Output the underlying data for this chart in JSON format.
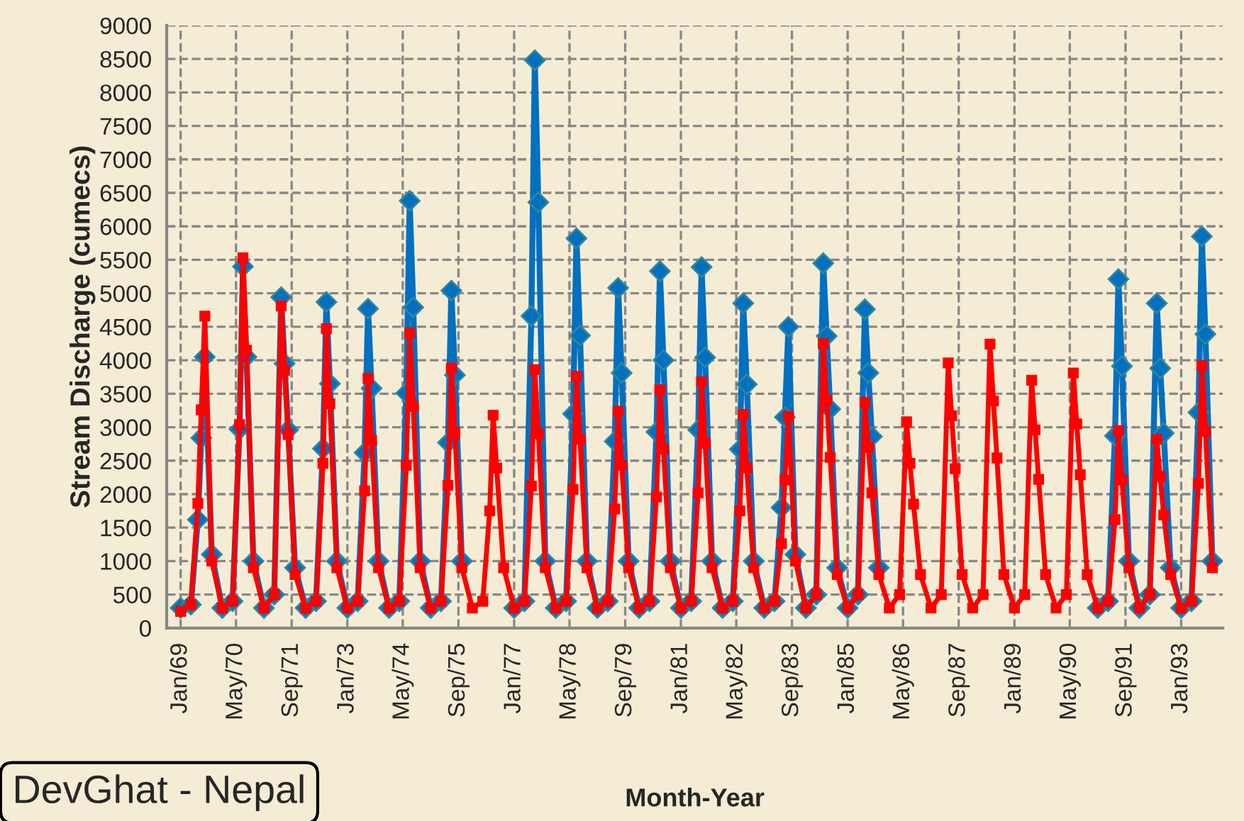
{
  "chart_data": {
    "type": "line",
    "xlabel": "Month-Year",
    "ylabel": "Stream Discharge (cumecs)",
    "annotations": [
      "DevGhat - Nepal"
    ],
    "x": [
      "1969-01",
      "1969-04",
      "1969-06",
      "1969-07",
      "1969-08",
      "1969-10",
      "1970-01",
      "1970-04",
      "1970-06",
      "1970-07",
      "1970-08",
      "1970-10",
      "1971-01",
      "1971-04",
      "1971-06",
      "1971-07",
      "1971-08",
      "1971-10",
      "1972-01",
      "1972-04",
      "1972-06",
      "1972-07",
      "1972-08",
      "1972-10",
      "1973-01",
      "1973-04",
      "1973-06",
      "1973-07",
      "1973-08",
      "1973-10",
      "1974-01",
      "1974-04",
      "1974-06",
      "1974-07",
      "1974-08",
      "1974-10",
      "1975-01",
      "1975-04",
      "1975-06",
      "1975-07",
      "1975-08",
      "1975-10",
      "1976-01",
      "1976-04",
      "1976-06",
      "1976-07",
      "1976-08",
      "1976-10",
      "1977-01",
      "1977-04",
      "1977-06",
      "1977-07",
      "1977-08",
      "1977-10",
      "1978-01",
      "1978-04",
      "1978-06",
      "1978-07",
      "1978-08",
      "1978-10",
      "1979-01",
      "1979-04",
      "1979-06",
      "1979-07",
      "1979-08",
      "1979-10",
      "1980-01",
      "1980-04",
      "1980-06",
      "1980-07",
      "1980-08",
      "1980-10",
      "1981-01",
      "1981-04",
      "1981-06",
      "1981-07",
      "1981-08",
      "1981-10",
      "1982-01",
      "1982-04",
      "1982-06",
      "1982-07",
      "1982-08",
      "1982-10",
      "1983-01",
      "1983-04",
      "1983-06",
      "1983-07",
      "1983-08",
      "1983-10",
      "1984-01",
      "1984-04",
      "1984-06",
      "1984-07",
      "1984-08",
      "1984-10",
      "1985-01",
      "1985-04",
      "1985-06",
      "1985-07",
      "1985-08",
      "1985-10",
      "1986-01",
      "1986-04",
      "1986-06",
      "1986-07",
      "1986-08",
      "1986-10",
      "1987-01",
      "1987-04",
      "1987-06",
      "1987-07",
      "1987-08",
      "1987-10",
      "1988-01",
      "1988-04",
      "1988-06",
      "1988-07",
      "1988-08",
      "1988-10",
      "1989-01",
      "1989-04",
      "1989-06",
      "1989-07",
      "1989-08",
      "1989-10",
      "1990-01",
      "1990-04",
      "1990-06",
      "1990-07",
      "1990-08",
      "1990-10",
      "1991-01",
      "1991-04",
      "1991-06",
      "1991-07",
      "1991-08",
      "1991-10",
      "1992-01",
      "1992-04",
      "1992-06",
      "1992-07",
      "1992-08",
      "1992-10",
      "1993-01",
      "1993-04",
      "1993-06",
      "1993-07",
      "1993-08",
      "1993-10"
    ],
    "series": [
      {
        "color": "#0070c0",
        "marker": "diamond",
        "values": [
          300,
          350,
          1620,
          2840,
          4050,
          1100,
          300,
          400,
          2970,
          5400,
          4050,
          1000,
          300,
          500,
          4940,
          3950,
          2960,
          900,
          300,
          400,
          2680,
          4870,
          3650,
          1000,
          300,
          400,
          2620,
          4770,
          3580,
          1000,
          300,
          400,
          3510,
          6380,
          4790,
          1000,
          300,
          400,
          2770,
          5040,
          3780,
          1000,
          null,
          null,
          null,
          null,
          null,
          null,
          300,
          400,
          4660,
          8480,
          6360,
          1000,
          300,
          400,
          3200,
          5820,
          4370,
          1000,
          300,
          400,
          2790,
          5080,
          3810,
          1000,
          300,
          400,
          2930,
          5330,
          4000,
          1000,
          300,
          400,
          2960,
          5390,
          4040,
          1000,
          300,
          400,
          2670,
          4850,
          3640,
          1000,
          300,
          400,
          1800,
          3150,
          4500,
          1100,
          300,
          500,
          5450,
          4360,
          3270,
          900,
          300,
          500,
          4760,
          3810,
          2860,
          900,
          null,
          null,
          null,
          null,
          null,
          null,
          null,
          null,
          null,
          null,
          null,
          null,
          null,
          null,
          null,
          null,
          null,
          null,
          null,
          null,
          null,
          null,
          null,
          null,
          null,
          null,
          null,
          null,
          null,
          null,
          300,
          400,
          2870,
          5210,
          3910,
          1000,
          300,
          500,
          4850,
          3880,
          2910,
          900,
          300,
          400,
          3220,
          5850,
          4390,
          1000
        ]
      },
      {
        "color": "#ff0000",
        "marker": "square",
        "values": [
          250,
          350,
          1860,
          3260,
          4660,
          1000,
          300,
          400,
          3040,
          5530,
          4150,
          900,
          300,
          500,
          4810,
          3850,
          2890,
          800,
          300,
          400,
          2460,
          4470,
          3350,
          900,
          300,
          400,
          2050,
          3730,
          2800,
          900,
          300,
          400,
          2430,
          4410,
          3310,
          900,
          300,
          400,
          2130,
          3880,
          2910,
          900,
          300,
          400,
          1750,
          3180,
          2390,
          900,
          300,
          400,
          2120,
          3860,
          2900,
          900,
          300,
          400,
          2070,
          3760,
          2820,
          900,
          300,
          400,
          1780,
          3240,
          2430,
          900,
          300,
          400,
          1960,
          3560,
          2670,
          900,
          300,
          400,
          2020,
          3680,
          2760,
          900,
          300,
          400,
          1750,
          3190,
          2390,
          900,
          300,
          400,
          1260,
          2210,
          3160,
          1000,
          300,
          500,
          4250,
          3400,
          2550,
          800,
          300,
          500,
          3370,
          2700,
          2020,
          800,
          300,
          500,
          3080,
          2460,
          1850,
          800,
          300,
          500,
          3960,
          3170,
          2380,
          800,
          300,
          500,
          4240,
          3390,
          2540,
          800,
          300,
          500,
          3700,
          2960,
          2220,
          800,
          300,
          500,
          3810,
          3050,
          2290,
          800,
          300,
          400,
          1620,
          2950,
          2210,
          900,
          300,
          500,
          2820,
          2260,
          1690,
          800,
          300,
          400,
          2160,
          3920,
          2940,
          900
        ]
      }
    ],
    "xlim": [
      "1968-09",
      "1994-01"
    ],
    "xticks": [
      {
        "value": "1969-01",
        "label": "Jan/69"
      },
      {
        "value": "1970-05",
        "label": "May/70"
      },
      {
        "value": "1971-09",
        "label": "Sep/71"
      },
      {
        "value": "1973-01",
        "label": "Jan/73"
      },
      {
        "value": "1974-05",
        "label": "May/74"
      },
      {
        "value": "1975-09",
        "label": "Sep/75"
      },
      {
        "value": "1977-01",
        "label": "Jan/77"
      },
      {
        "value": "1978-05",
        "label": "May/78"
      },
      {
        "value": "1979-09",
        "label": "Sep/79"
      },
      {
        "value": "1981-01",
        "label": "Jan/81"
      },
      {
        "value": "1982-05",
        "label": "May/82"
      },
      {
        "value": "1983-09",
        "label": "Sep/83"
      },
      {
        "value": "1985-01",
        "label": "Jan/85"
      },
      {
        "value": "1986-05",
        "label": "May/86"
      },
      {
        "value": "1987-09",
        "label": "Sep/87"
      },
      {
        "value": "1989-01",
        "label": "Jan/89"
      },
      {
        "value": "1990-05",
        "label": "May/90"
      },
      {
        "value": "1991-09",
        "label": "Sep/91"
      },
      {
        "value": "1993-01",
        "label": "Jan/93"
      }
    ],
    "ylim": [
      0,
      9000
    ],
    "yticks": [
      0,
      500,
      1000,
      1500,
      2000,
      2500,
      3000,
      3500,
      4000,
      4500,
      5000,
      5500,
      6000,
      6500,
      7000,
      7500,
      8000,
      8500,
      9000
    ],
    "grid": true,
    "line_style": "solid",
    "legend": false
  }
}
